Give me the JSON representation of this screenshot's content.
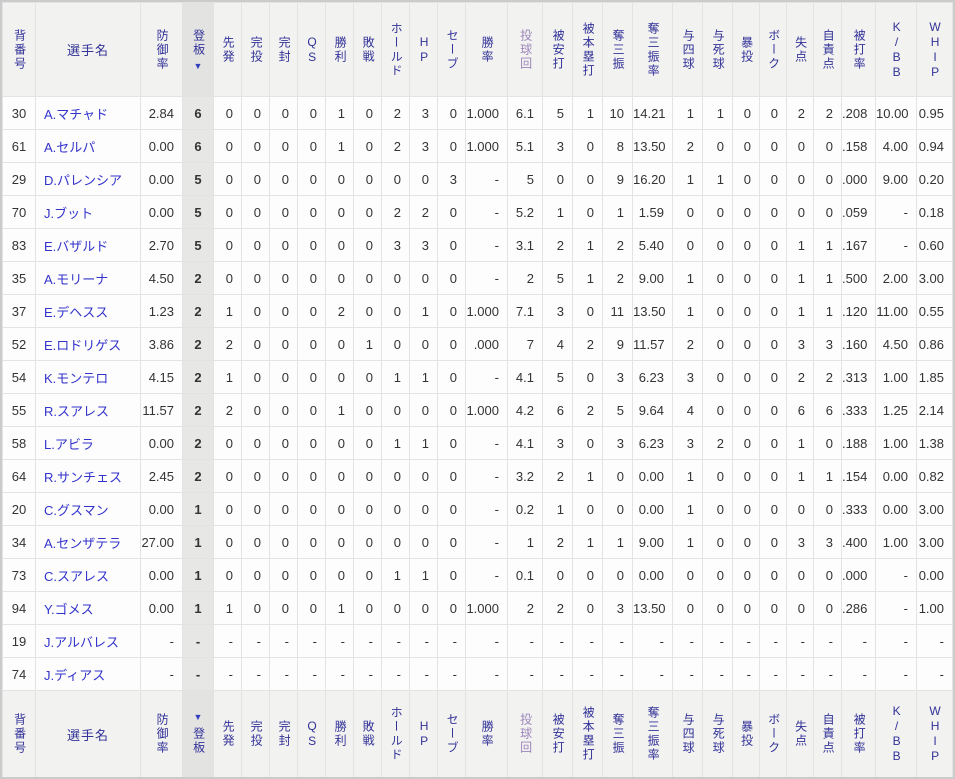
{
  "icons": {
    "sort_desc": "▼"
  },
  "table": {
    "columns": [
      {
        "key": "number",
        "label": "背番号",
        "vertical": true
      },
      {
        "key": "name",
        "label": "選手名",
        "vertical": false
      },
      {
        "key": "era",
        "label": "防御率",
        "vertical": true
      },
      {
        "key": "games",
        "label": "登板",
        "vertical": true,
        "sorted": true
      },
      {
        "key": "starts",
        "label": "先発",
        "vertical": true
      },
      {
        "key": "complete",
        "label": "完投",
        "vertical": true
      },
      {
        "key": "shutouts",
        "label": "完封",
        "vertical": true
      },
      {
        "key": "qs",
        "label": "QS",
        "vertical": true,
        "latin": true
      },
      {
        "key": "wins",
        "label": "勝利",
        "vertical": true
      },
      {
        "key": "losses",
        "label": "敗戦",
        "vertical": true
      },
      {
        "key": "holds",
        "label": "ホールド",
        "vertical": true
      },
      {
        "key": "hp",
        "label": "HP",
        "vertical": true,
        "latin": true
      },
      {
        "key": "saves",
        "label": "セーブ",
        "vertical": true
      },
      {
        "key": "win_pct",
        "label": "勝率",
        "vertical": true
      },
      {
        "key": "innings",
        "label": "投球回",
        "vertical": true,
        "visited": true
      },
      {
        "key": "hits",
        "label": "被安打",
        "vertical": true
      },
      {
        "key": "hr",
        "label": "被本塁打",
        "vertical": true
      },
      {
        "key": "so",
        "label": "奪三振",
        "vertical": true
      },
      {
        "key": "so_rate",
        "label": "奪三振率",
        "vertical": true
      },
      {
        "key": "bb",
        "label": "与四球",
        "vertical": true
      },
      {
        "key": "hbp",
        "label": "与死球",
        "vertical": true
      },
      {
        "key": "wild",
        "label": "暴投",
        "vertical": true
      },
      {
        "key": "balk",
        "label": "ボーク",
        "vertical": true
      },
      {
        "key": "runs",
        "label": "失点",
        "vertical": true
      },
      {
        "key": "er",
        "label": "自責点",
        "vertical": true
      },
      {
        "key": "avg",
        "label": "被打率",
        "vertical": true
      },
      {
        "key": "k_bb",
        "label": "K/BB",
        "vertical": true,
        "latin": true
      },
      {
        "key": "whip",
        "label": "WHIP",
        "vertical": true,
        "latin": true
      }
    ],
    "rows": [
      {
        "number": "30",
        "name": "A.マチャド",
        "stats": [
          "2.84",
          "6",
          "0",
          "0",
          "0",
          "0",
          "1",
          "0",
          "2",
          "3",
          "0",
          "1.000",
          "6.1",
          "5",
          "1",
          "10",
          "14.21",
          "1",
          "1",
          "0",
          "0",
          "2",
          "2",
          ".208",
          "10.00",
          "0.95"
        ]
      },
      {
        "number": "61",
        "name": "A.セルパ",
        "stats": [
          "0.00",
          "6",
          "0",
          "0",
          "0",
          "0",
          "1",
          "0",
          "2",
          "3",
          "0",
          "1.000",
          "5.1",
          "3",
          "0",
          "8",
          "13.50",
          "2",
          "0",
          "0",
          "0",
          "0",
          "0",
          ".158",
          "4.00",
          "0.94"
        ]
      },
      {
        "number": "29",
        "name": "D.パレンシア",
        "stats": [
          "0.00",
          "5",
          "0",
          "0",
          "0",
          "0",
          "0",
          "0",
          "0",
          "0",
          "3",
          "-",
          "5",
          "0",
          "0",
          "9",
          "16.20",
          "1",
          "1",
          "0",
          "0",
          "0",
          "0",
          ".000",
          "9.00",
          "0.20"
        ]
      },
      {
        "number": "70",
        "name": "J.ブット",
        "stats": [
          "0.00",
          "5",
          "0",
          "0",
          "0",
          "0",
          "0",
          "0",
          "2",
          "2",
          "0",
          "-",
          "5.2",
          "1",
          "0",
          "1",
          "1.59",
          "0",
          "0",
          "0",
          "0",
          "0",
          "0",
          ".059",
          "-",
          "0.18"
        ]
      },
      {
        "number": "83",
        "name": "E.バザルド",
        "stats": [
          "2.70",
          "5",
          "0",
          "0",
          "0",
          "0",
          "0",
          "0",
          "3",
          "3",
          "0",
          "-",
          "3.1",
          "2",
          "1",
          "2",
          "5.40",
          "0",
          "0",
          "0",
          "0",
          "1",
          "1",
          ".167",
          "-",
          "0.60"
        ]
      },
      {
        "number": "35",
        "name": "A.モリーナ",
        "stats": [
          "4.50",
          "2",
          "0",
          "0",
          "0",
          "0",
          "0",
          "0",
          "0",
          "0",
          "0",
          "-",
          "2",
          "5",
          "1",
          "2",
          "9.00",
          "1",
          "0",
          "0",
          "0",
          "1",
          "1",
          ".500",
          "2.00",
          "3.00"
        ]
      },
      {
        "number": "37",
        "name": "E.デヘスス",
        "stats": [
          "1.23",
          "2",
          "1",
          "0",
          "0",
          "0",
          "2",
          "0",
          "0",
          "1",
          "0",
          "1.000",
          "7.1",
          "3",
          "0",
          "11",
          "13.50",
          "1",
          "0",
          "0",
          "0",
          "1",
          "1",
          ".120",
          "11.00",
          "0.55"
        ]
      },
      {
        "number": "52",
        "name": "E.ロドリゲス",
        "stats": [
          "3.86",
          "2",
          "2",
          "0",
          "0",
          "0",
          "0",
          "1",
          "0",
          "0",
          "0",
          ".000",
          "7",
          "4",
          "2",
          "9",
          "11.57",
          "2",
          "0",
          "0",
          "0",
          "3",
          "3",
          ".160",
          "4.50",
          "0.86"
        ]
      },
      {
        "number": "54",
        "name": "K.モンテロ",
        "stats": [
          "4.15",
          "2",
          "1",
          "0",
          "0",
          "0",
          "0",
          "0",
          "1",
          "1",
          "0",
          "-",
          "4.1",
          "5",
          "0",
          "3",
          "6.23",
          "3",
          "0",
          "0",
          "0",
          "2",
          "2",
          ".313",
          "1.00",
          "1.85"
        ]
      },
      {
        "number": "55",
        "name": "R.スアレス",
        "stats": [
          "11.57",
          "2",
          "2",
          "0",
          "0",
          "0",
          "1",
          "0",
          "0",
          "0",
          "0",
          "1.000",
          "4.2",
          "6",
          "2",
          "5",
          "9.64",
          "4",
          "0",
          "0",
          "0",
          "6",
          "6",
          ".333",
          "1.25",
          "2.14"
        ]
      },
      {
        "number": "58",
        "name": "L.アビラ",
        "stats": [
          "0.00",
          "2",
          "0",
          "0",
          "0",
          "0",
          "0",
          "0",
          "1",
          "1",
          "0",
          "-",
          "4.1",
          "3",
          "0",
          "3",
          "6.23",
          "3",
          "2",
          "0",
          "0",
          "1",
          "0",
          ".188",
          "1.00",
          "1.38"
        ]
      },
      {
        "number": "64",
        "name": "R.サンチェス",
        "stats": [
          "2.45",
          "2",
          "0",
          "0",
          "0",
          "0",
          "0",
          "0",
          "0",
          "0",
          "0",
          "-",
          "3.2",
          "2",
          "1",
          "0",
          "0.00",
          "1",
          "0",
          "0",
          "0",
          "1",
          "1",
          ".154",
          "0.00",
          "0.82"
        ]
      },
      {
        "number": "20",
        "name": "C.グスマン",
        "stats": [
          "0.00",
          "1",
          "0",
          "0",
          "0",
          "0",
          "0",
          "0",
          "0",
          "0",
          "0",
          "-",
          "0.2",
          "1",
          "0",
          "0",
          "0.00",
          "1",
          "0",
          "0",
          "0",
          "0",
          "0",
          ".333",
          "0.00",
          "3.00"
        ]
      },
      {
        "number": "34",
        "name": "A.センザテラ",
        "stats": [
          "27.00",
          "1",
          "0",
          "0",
          "0",
          "0",
          "0",
          "0",
          "0",
          "0",
          "0",
          "-",
          "1",
          "2",
          "1",
          "1",
          "9.00",
          "1",
          "0",
          "0",
          "0",
          "3",
          "3",
          ".400",
          "1.00",
          "3.00"
        ]
      },
      {
        "number": "73",
        "name": "C.スアレス",
        "stats": [
          "0.00",
          "1",
          "0",
          "0",
          "0",
          "0",
          "0",
          "0",
          "1",
          "1",
          "0",
          "-",
          "0.1",
          "0",
          "0",
          "0",
          "0.00",
          "0",
          "0",
          "0",
          "0",
          "0",
          "0",
          ".000",
          "-",
          "0.00"
        ]
      },
      {
        "number": "94",
        "name": "Y.ゴメス",
        "stats": [
          "0.00",
          "1",
          "1",
          "0",
          "0",
          "0",
          "1",
          "0",
          "0",
          "0",
          "0",
          "1.000",
          "2",
          "2",
          "0",
          "3",
          "13.50",
          "0",
          "0",
          "0",
          "0",
          "0",
          "0",
          ".286",
          "-",
          "1.00"
        ]
      },
      {
        "number": "19",
        "name": "J.アルバレス",
        "stats": [
          "-",
          "-",
          "-",
          "-",
          "-",
          "-",
          "-",
          "-",
          "-",
          "-",
          "-",
          "-",
          "-",
          "-",
          "-",
          "-",
          "-",
          "-",
          "-",
          "-",
          "-",
          "-",
          "-",
          "-",
          "-",
          "-"
        ]
      },
      {
        "number": "74",
        "name": "J.ディアス",
        "stats": [
          "-",
          "-",
          "-",
          "-",
          "-",
          "-",
          "-",
          "-",
          "-",
          "-",
          "-",
          "-",
          "-",
          "-",
          "-",
          "-",
          "-",
          "-",
          "-",
          "-",
          "-",
          "-",
          "-",
          "-",
          "-",
          "-"
        ]
      }
    ]
  }
}
